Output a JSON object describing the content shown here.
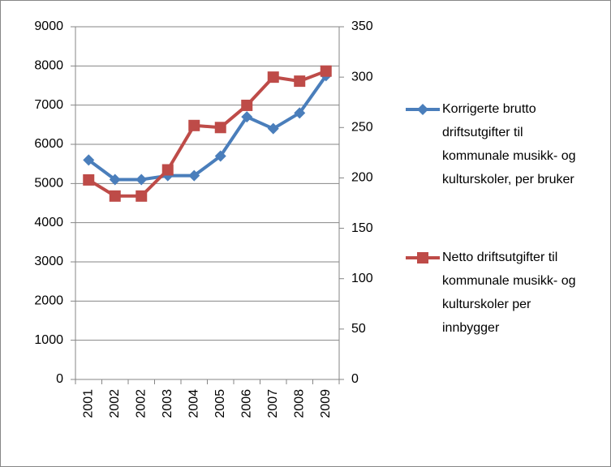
{
  "chart_data": {
    "type": "line",
    "categories": [
      "2001",
      "2002",
      "2002",
      "2003",
      "2004",
      "2005",
      "2006",
      "2007",
      "2008",
      "2009"
    ],
    "series": [
      {
        "name": "Korrigerte brutto driftsutgifter til kommunale musikk- og kulturskoler, per bruker",
        "color": "#4a7ebb",
        "marker": "diamond",
        "values": [
          5600,
          5100,
          5100,
          5200,
          5200,
          5700,
          6700,
          6400,
          6800,
          7750
        ]
      },
      {
        "name": "Netto driftsutgifter til kommunale musikk- og kulturskoler per innbygger",
        "color": "#be4b48",
        "marker": "square",
        "axis": "y2",
        "values": [
          198,
          182,
          182,
          208,
          252,
          250,
          272,
          300,
          296,
          306
        ]
      }
    ],
    "ylim": [
      0,
      9000
    ],
    "yticks": [
      0,
      1000,
      2000,
      3000,
      4000,
      5000,
      6000,
      7000,
      8000,
      9000
    ],
    "y2lim": [
      0,
      350
    ],
    "y2ticks": [
      0,
      50,
      100,
      150,
      200,
      250,
      300,
      350
    ],
    "grid": true,
    "legend": "right"
  }
}
